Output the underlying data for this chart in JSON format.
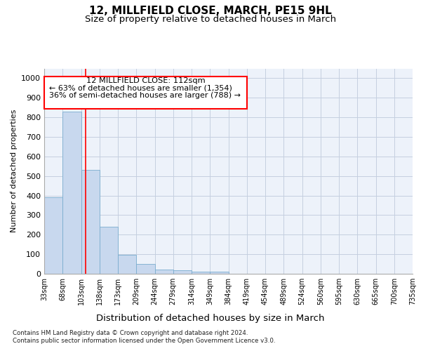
{
  "title": "12, MILLFIELD CLOSE, MARCH, PE15 9HL",
  "subtitle": "Size of property relative to detached houses in March",
  "xlabel": "Distribution of detached houses by size in March",
  "ylabel": "Number of detached properties",
  "annotation_line1": "12 MILLFIELD CLOSE: 112sqm",
  "annotation_line2": "← 63% of detached houses are smaller (1,354)",
  "annotation_line3": "36% of semi-detached houses are larger (788) →",
  "footer_line1": "Contains HM Land Registry data © Crown copyright and database right 2024.",
  "footer_line2": "Contains public sector information licensed under the Open Government Licence v3.0.",
  "bin_labels": [
    "33sqm",
    "68sqm",
    "103sqm",
    "138sqm",
    "173sqm",
    "209sqm",
    "244sqm",
    "279sqm",
    "314sqm",
    "349sqm",
    "384sqm",
    "419sqm",
    "454sqm",
    "489sqm",
    "524sqm",
    "560sqm",
    "595sqm",
    "630sqm",
    "665sqm",
    "700sqm",
    "735sqm"
  ],
  "bar_values": [
    390,
    830,
    530,
    240,
    97,
    52,
    20,
    18,
    12,
    10,
    0,
    0,
    0,
    0,
    0,
    0,
    0,
    0,
    0,
    0
  ],
  "bar_color": "#c8d8ee",
  "bar_edge_color": "#7aadcf",
  "ylim": [
    0,
    1050
  ],
  "yticks": [
    0,
    100,
    200,
    300,
    400,
    500,
    600,
    700,
    800,
    900,
    1000
  ],
  "plot_background": "#edf2fa",
  "grid_color": "#c5cfe0",
  "title_fontsize": 11,
  "subtitle_fontsize": 9.5,
  "xlabel_fontsize": 9.5,
  "ylabel_fontsize": 8,
  "ytick_fontsize": 8,
  "xtick_fontsize": 7
}
